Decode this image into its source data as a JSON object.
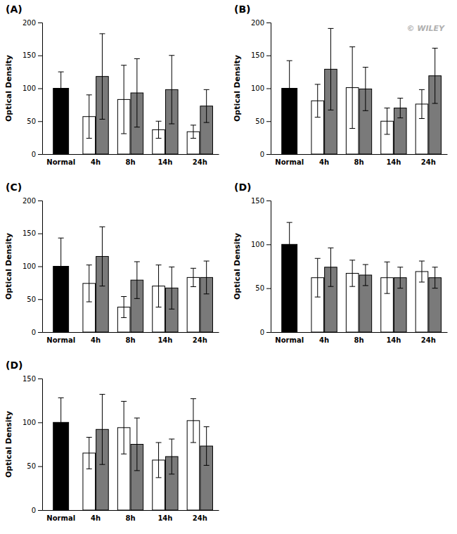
{
  "chart_data": [
    {
      "type": "bar",
      "title": "(A)",
      "y_label": "Optical Density",
      "categories": [
        "Normal",
        "4h",
        "8h",
        "14h",
        "24h"
      ],
      "series": [
        {
          "colors": [
            "#000000",
            "#ffffff",
            "#ffffff",
            "#ffffff",
            "#ffffff"
          ],
          "values": [
            100,
            57,
            83,
            37,
            34
          ],
          "errors": [
            25,
            33,
            52,
            13,
            10
          ]
        },
        {
          "color": "#7a7a7a",
          "values": [
            null,
            118,
            93,
            98,
            73
          ],
          "errors": [
            null,
            65,
            52,
            52,
            25
          ]
        }
      ],
      "ylim": [
        0,
        200
      ],
      "yticks": [
        0,
        50,
        100,
        150,
        200
      ],
      "grid": false
    },
    {
      "type": "bar",
      "title": "(B)",
      "y_label": "Optical Density",
      "annotations": [
        "© WILEY"
      ],
      "categories": [
        "Normal",
        "4h",
        "8h",
        "14h",
        "24h"
      ],
      "series": [
        {
          "colors": [
            "#000000",
            "#ffffff",
            "#ffffff",
            "#ffffff",
            "#ffffff"
          ],
          "values": [
            100,
            81,
            101,
            50,
            76
          ],
          "errors": [
            42,
            25,
            62,
            20,
            22
          ]
        },
        {
          "color": "#7a7a7a",
          "values": [
            null,
            129,
            99,
            70,
            119
          ],
          "errors": [
            null,
            62,
            33,
            15,
            42
          ]
        }
      ],
      "ylim": [
        0,
        200
      ],
      "yticks": [
        0,
        50,
        100,
        150,
        200
      ],
      "grid": false
    },
    {
      "type": "bar",
      "title": "(C)",
      "y_label": "Optical Density",
      "categories": [
        "Normal",
        "4h",
        "8h",
        "14h",
        "24h"
      ],
      "series": [
        {
          "colors": [
            "#000000",
            "#ffffff",
            "#ffffff",
            "#ffffff",
            "#ffffff"
          ],
          "values": [
            100,
            74,
            38,
            70,
            83
          ],
          "errors": [
            43,
            28,
            16,
            32,
            14
          ]
        },
        {
          "color": "#7a7a7a",
          "values": [
            null,
            115,
            79,
            67,
            83
          ],
          "errors": [
            null,
            45,
            28,
            32,
            25
          ]
        }
      ],
      "ylim": [
        0,
        200
      ],
      "yticks": [
        0,
        50,
        100,
        150,
        200
      ],
      "grid": false
    },
    {
      "type": "bar",
      "title": "(D)",
      "y_label": "Optical Density",
      "categories": [
        "Normal",
        "4h",
        "8h",
        "14h",
        "24h"
      ],
      "series": [
        {
          "colors": [
            "#000000",
            "#ffffff",
            "#ffffff",
            "#ffffff",
            "#ffffff"
          ],
          "values": [
            100,
            62,
            67,
            62,
            69
          ],
          "errors": [
            25,
            22,
            15,
            18,
            12
          ]
        },
        {
          "color": "#7a7a7a",
          "values": [
            null,
            74,
            65,
            62,
            62
          ],
          "errors": [
            null,
            22,
            12,
            12,
            12
          ]
        }
      ],
      "ylim": [
        0,
        150
      ],
      "yticks": [
        0,
        50,
        100,
        150
      ],
      "grid": false
    },
    {
      "type": "bar",
      "title": "(D)",
      "y_label": "Optical Density",
      "categories": [
        "Normal",
        "4h",
        "8h",
        "14h",
        "24h"
      ],
      "series": [
        {
          "colors": [
            "#000000",
            "#ffffff",
            "#ffffff",
            "#ffffff",
            "#ffffff"
          ],
          "values": [
            100,
            65,
            94,
            57,
            102
          ],
          "errors": [
            28,
            18,
            30,
            20,
            25
          ]
        },
        {
          "color": "#7a7a7a",
          "values": [
            null,
            92,
            75,
            61,
            73
          ],
          "errors": [
            null,
            40,
            30,
            20,
            22
          ]
        }
      ],
      "ylim": [
        0,
        150
      ],
      "yticks": [
        0,
        50,
        100,
        150
      ],
      "grid": false
    }
  ]
}
